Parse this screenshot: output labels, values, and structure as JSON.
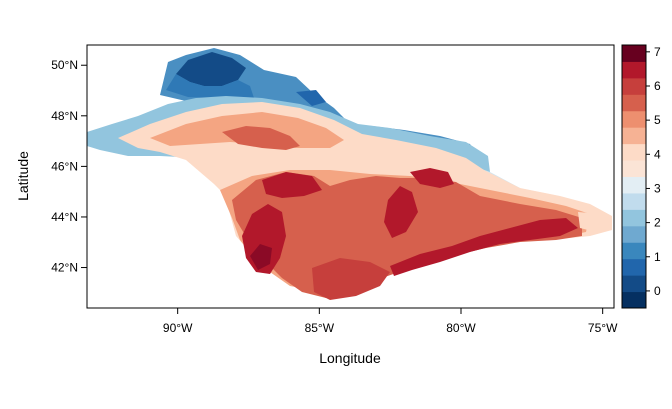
{
  "chart_data": {
    "type": "heatmap",
    "subtype": "raster map",
    "xlabel": "Longitude",
    "ylabel": "Latitude",
    "xlim": [
      -93.2,
      -74.6
    ],
    "ylim": [
      40.4,
      50.8
    ],
    "x_ticks": [
      {
        "value": -90,
        "label": "90°W"
      },
      {
        "value": -85,
        "label": "85°W"
      },
      {
        "value": -80,
        "label": "80°W"
      },
      {
        "value": -75,
        "label": "75°W"
      }
    ],
    "y_ticks": [
      {
        "value": 42,
        "label": "42°N"
      },
      {
        "value": 44,
        "label": "44°N"
      },
      {
        "value": 46,
        "label": "46°N"
      },
      {
        "value": 48,
        "label": "48°N"
      },
      {
        "value": 50,
        "label": "50°N"
      }
    ],
    "colorbar": {
      "min": -0.5,
      "max": 7.2,
      "tick_values": [
        0,
        1,
        2,
        3,
        4,
        5,
        6,
        7
      ],
      "tick_labels": [
        "0",
        "1",
        "2",
        "3",
        "4",
        "5",
        "6",
        "7"
      ],
      "colors": [
        "#053061",
        "#134b87",
        "#2166ac",
        "#3a87bd",
        "#6fa9d0",
        "#92c5de",
        "#c1dced",
        "#e3eef4",
        "#fbe4d6",
        "#fddbc7",
        "#f6b294",
        "#ed8f6f",
        "#d6604d",
        "#c63f3c",
        "#b2182b",
        "#67001f"
      ]
    },
    "grid": false,
    "legend": "right"
  }
}
